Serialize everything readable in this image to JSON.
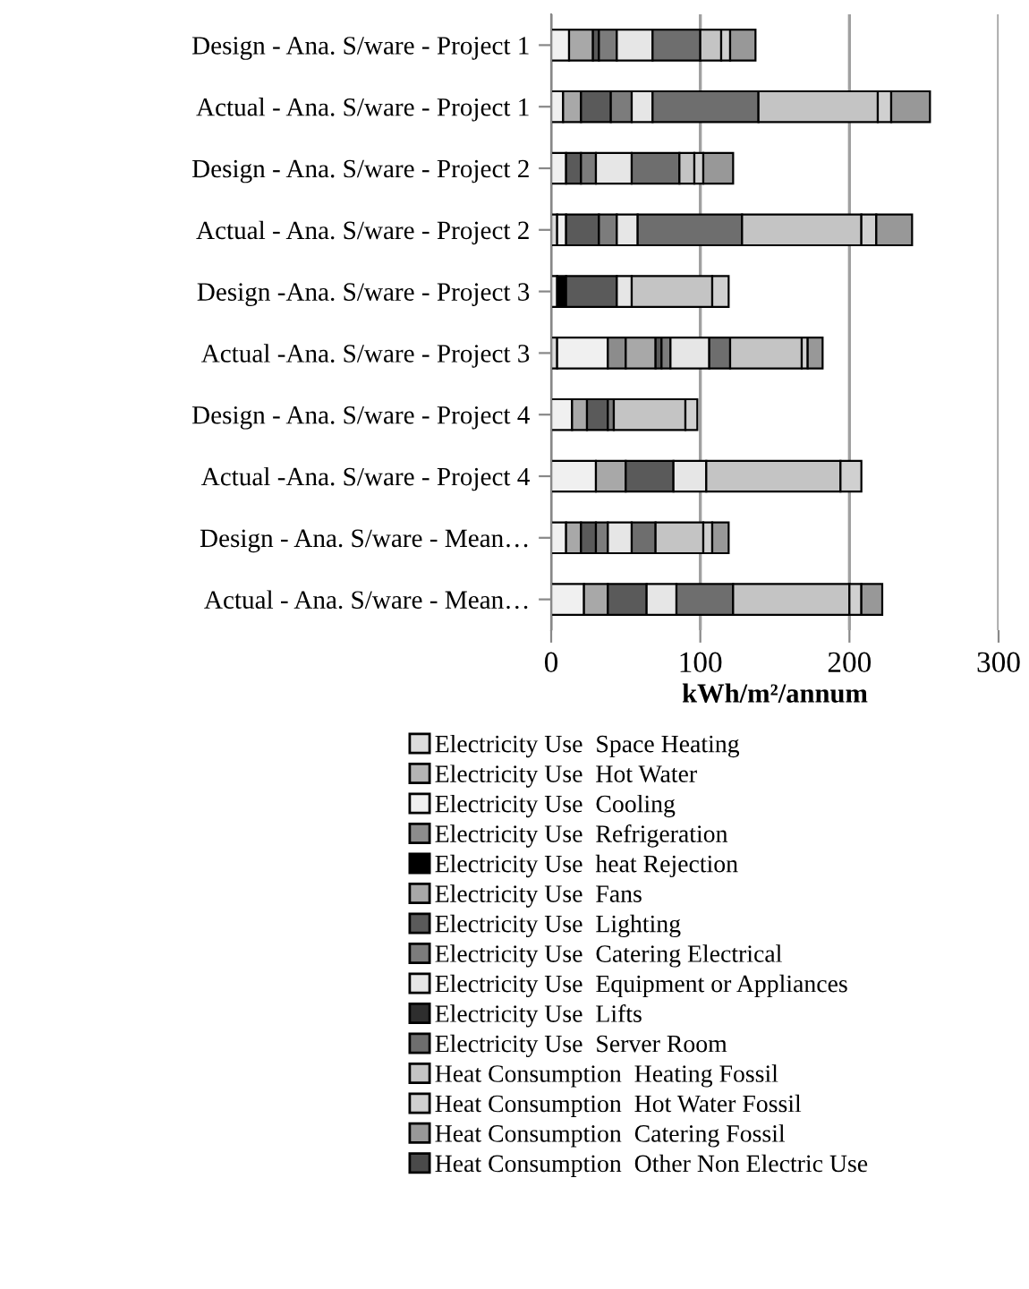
{
  "chart_data": {
    "type": "bar",
    "orientation": "horizontal",
    "stacked": true,
    "xlabel": "kWh/m²/annum",
    "categories": [
      "Design - Ana. S/ware - Project 1",
      "Actual - Ana. S/ware - Project 1",
      "Design - Ana. S/ware - Project 2",
      "Actual - Ana. S/ware - Project 2",
      "Design -Ana. S/ware - Project 3",
      "Actual -Ana. S/ware - Project 3",
      "Design - Ana. S/ware - Project 4",
      "Actual -Ana. S/ware - Project 4",
      "Design - Ana. S/ware - Mean…",
      "Actual - Ana. S/ware - Mean…"
    ],
    "xlim": [
      0,
      300
    ],
    "xticks": [
      0,
      100,
      200,
      300
    ],
    "grid": "x",
    "legend": "bottom",
    "series": [
      {
        "name": "Electricity Use  Space Heating",
        "color": "#dcdcdc",
        "values": [
          null,
          null,
          null,
          4,
          null,
          4,
          null,
          null,
          null,
          null
        ]
      },
      {
        "name": "Electricity Use  Hot Water",
        "color": "#b4b4b4",
        "values": [
          null,
          null,
          null,
          null,
          null,
          null,
          null,
          null,
          null,
          null
        ]
      },
      {
        "name": "Electricity Use  Cooling",
        "color": "#f0f0f0",
        "values": [
          12,
          8,
          10,
          6,
          4,
          34,
          14,
          30,
          10,
          22
        ]
      },
      {
        "name": "Electricity Use  Refrigeration",
        "color": "#8c8c8c",
        "values": [
          null,
          null,
          null,
          null,
          null,
          12,
          null,
          null,
          null,
          null
        ]
      },
      {
        "name": "Electricity Use  heat Rejection",
        "color": "#000000",
        "values": [
          null,
          null,
          null,
          null,
          6,
          null,
          null,
          null,
          null,
          null
        ]
      },
      {
        "name": "Electricity Use  Fans",
        "color": "#a8a8a8",
        "values": [
          16,
          12,
          null,
          null,
          null,
          20,
          10,
          20,
          10,
          16
        ]
      },
      {
        "name": "Electricity Use  Lighting",
        "color": "#5a5a5a",
        "values": [
          4,
          20,
          10,
          22,
          34,
          4,
          14,
          32,
          10,
          26
        ]
      },
      {
        "name": "Electricity Use  Catering Electrical",
        "color": "#7c7c7c",
        "values": [
          12,
          14,
          10,
          12,
          null,
          6,
          4,
          null,
          8,
          null
        ]
      },
      {
        "name": "Electricity Use  Equipment or Appliances",
        "color": "#e6e6e6",
        "values": [
          24,
          14,
          24,
          14,
          10,
          26,
          null,
          22,
          16,
          20
        ]
      },
      {
        "name": "Electricity Use  Lifts",
        "color": "#2e2e2e",
        "values": [
          null,
          null,
          null,
          null,
          null,
          null,
          null,
          null,
          null,
          null
        ]
      },
      {
        "name": "Electricity Use  Server Room",
        "color": "#6e6e6e",
        "values": [
          32,
          71,
          32,
          70,
          null,
          14,
          null,
          null,
          16,
          38
        ]
      },
      {
        "name": "Heat Consumption  Heating Fossil",
        "color": "#c4c4c4",
        "values": [
          14,
          80,
          10,
          80,
          54,
          48,
          48,
          90,
          32,
          78
        ]
      },
      {
        "name": "Heat Consumption  Hot Water Fossil",
        "color": "#d0d0d0",
        "values": [
          6,
          9,
          6,
          10,
          11,
          4,
          8,
          14,
          6,
          8
        ]
      },
      {
        "name": "Heat Consumption  Catering Fossil",
        "color": "#989898",
        "values": [
          17,
          26,
          20,
          24,
          null,
          10,
          null,
          null,
          11,
          14
        ]
      },
      {
        "name": "Heat Consumption  Other Non Electric Use",
        "color": "#4a4a4a",
        "values": [
          null,
          null,
          null,
          null,
          null,
          null,
          null,
          null,
          null,
          null
        ]
      }
    ]
  }
}
